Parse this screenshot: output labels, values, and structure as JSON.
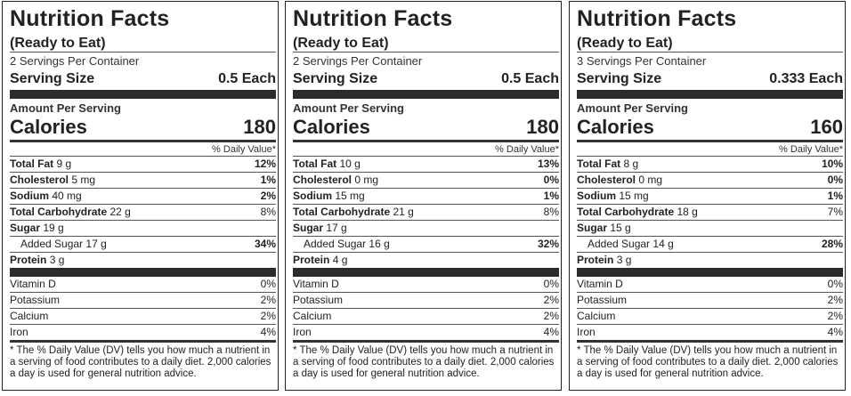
{
  "labels": [
    {
      "title": "Nutrition Facts",
      "subtitle": "(Ready to Eat)",
      "servings_per_container": "2 Servings Per Container",
      "serving_size_label": "Serving Size",
      "serving_size_value": "0.5 Each",
      "amount_per_serving": "Amount Per Serving",
      "calories_label": "Calories",
      "calories_value": "180",
      "dv_header": "% Daily Value*",
      "nutrients": [
        {
          "name": "Total Fat",
          "amount": "9 g",
          "pct": "12%"
        },
        {
          "name": "Cholesterol",
          "amount": "5 mg",
          "pct": "1%"
        },
        {
          "name": "Sodium",
          "amount": "40 mg",
          "pct": "2%"
        },
        {
          "name": "Total Carbohydrate",
          "amount": "22 g",
          "pct": "8%"
        },
        {
          "name": "Sugar",
          "amount": "19 g",
          "pct": ""
        },
        {
          "name": "Added Sugar",
          "amount": "17 g",
          "pct": "34%"
        },
        {
          "name": "Protein",
          "amount": "3 g",
          "pct": ""
        }
      ],
      "vitamins": [
        {
          "name": "Vitamin D",
          "pct": "0%"
        },
        {
          "name": "Potassium",
          "pct": "2%"
        },
        {
          "name": "Calcium",
          "pct": "2%"
        },
        {
          "name": "Iron",
          "pct": "4%"
        }
      ],
      "footnote": "* The % Daily Value (DV) tells you how much a nutrient in a serving of food contributes to a daily diet. 2,000 calories a day is used for general nutrition advice."
    },
    {
      "title": "Nutrition Facts",
      "subtitle": "(Ready to Eat)",
      "servings_per_container": "2 Servings Per Container",
      "serving_size_label": "Serving Size",
      "serving_size_value": "0.5 Each",
      "amount_per_serving": "Amount Per Serving",
      "calories_label": "Calories",
      "calories_value": "180",
      "dv_header": "% Daily Value*",
      "nutrients": [
        {
          "name": "Total Fat",
          "amount": "10 g",
          "pct": "13%"
        },
        {
          "name": "Cholesterol",
          "amount": "0 mg",
          "pct": "0%"
        },
        {
          "name": "Sodium",
          "amount": "15 mg",
          "pct": "1%"
        },
        {
          "name": "Total Carbohydrate",
          "amount": "21 g",
          "pct": "8%"
        },
        {
          "name": "Sugar",
          "amount": "17 g",
          "pct": ""
        },
        {
          "name": "Added Sugar",
          "amount": "16 g",
          "pct": "32%"
        },
        {
          "name": "Protein",
          "amount": "4 g",
          "pct": ""
        }
      ],
      "vitamins": [
        {
          "name": "Vitamin D",
          "pct": "0%"
        },
        {
          "name": "Potassium",
          "pct": "2%"
        },
        {
          "name": "Calcium",
          "pct": "2%"
        },
        {
          "name": "Iron",
          "pct": "4%"
        }
      ],
      "footnote": "* The % Daily Value (DV) tells you how much a nutrient in a serving of food contributes to a daily diet. 2,000 calories a day is used for general nutrition advice."
    },
    {
      "title": "Nutrition Facts",
      "subtitle": "(Ready to Eat)",
      "servings_per_container": "3 Servings Per Container",
      "serving_size_label": "Serving Size",
      "serving_size_value": "0.333 Each",
      "amount_per_serving": "Amount Per Serving",
      "calories_label": "Calories",
      "calories_value": "160",
      "dv_header": "% Daily Value*",
      "nutrients": [
        {
          "name": "Total Fat",
          "amount": "8 g",
          "pct": "10%"
        },
        {
          "name": "Cholesterol",
          "amount": "0 mg",
          "pct": "0%"
        },
        {
          "name": "Sodium",
          "amount": "15 mg",
          "pct": "1%"
        },
        {
          "name": "Total Carbohydrate",
          "amount": "18 g",
          "pct": "7%"
        },
        {
          "name": "Sugar",
          "amount": "15 g",
          "pct": ""
        },
        {
          "name": "Added Sugar",
          "amount": "14 g",
          "pct": "28%"
        },
        {
          "name": "Protein",
          "amount": "3 g",
          "pct": ""
        }
      ],
      "vitamins": [
        {
          "name": "Vitamin D",
          "pct": "0%"
        },
        {
          "name": "Potassium",
          "pct": "2%"
        },
        {
          "name": "Calcium",
          "pct": "2%"
        },
        {
          "name": "Iron",
          "pct": "4%"
        }
      ],
      "footnote": "* The % Daily Value (DV) tells you how much a nutrient in a serving of food contributes to a daily diet. 2,000 calories a day is used for general nutrition advice."
    }
  ]
}
